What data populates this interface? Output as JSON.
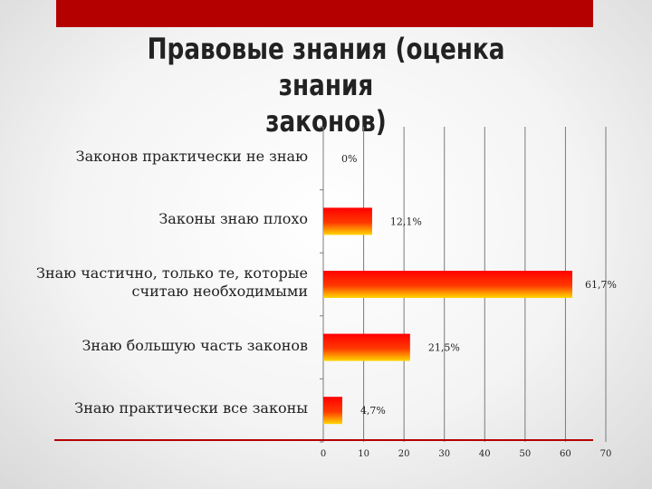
{
  "slide": {
    "title": "Правовые знания (оценка знания\nзаконов)",
    "accent_color": "#b50000"
  },
  "chart_data": {
    "type": "bar",
    "orientation": "horizontal",
    "categories": [
      "Законов практически не знаю",
      "Законы знаю  плохо",
      "Знаю частично, только те, которые\nсчитаю   необходимыми",
      "Знаю большую часть законов",
      "Знаю практически  все  законы"
    ],
    "values": [
      0,
      12.1,
      61.7,
      21.5,
      4.7
    ],
    "data_labels": [
      "0%",
      "12,1%",
      "61,7%",
      "21,5%",
      "4,7%"
    ],
    "xlim": [
      0,
      70
    ],
    "xticks": [
      "0",
      "10",
      "20",
      "30",
      "40",
      "50",
      "60",
      "70"
    ],
    "grid": true,
    "bar_fill": [
      "#ff0000",
      "#ffd700"
    ]
  }
}
